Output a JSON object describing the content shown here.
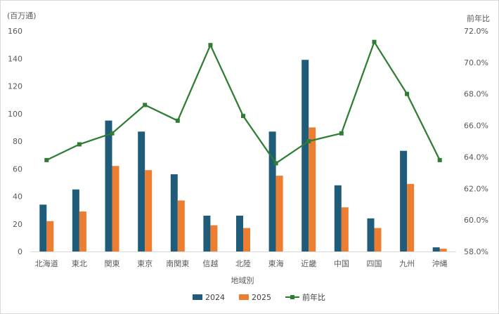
{
  "chart_data": {
    "type": "bar",
    "categories": [
      "北海道",
      "東北",
      "関東",
      "東京",
      "南関東",
      "信越",
      "北陸",
      "東海",
      "近畿",
      "中国",
      "四国",
      "九州",
      "沖縄"
    ],
    "series": [
      {
        "name": "2024",
        "type": "bar",
        "axis": "left",
        "color": "#1F5C7A",
        "values": [
          34,
          45,
          95,
          87,
          56,
          26,
          26,
          87,
          139,
          48,
          24,
          73,
          3
        ]
      },
      {
        "name": "2025",
        "type": "bar",
        "axis": "left",
        "color": "#ED7D31",
        "values": [
          22,
          29,
          62,
          59,
          37,
          19,
          17,
          55,
          90,
          32,
          17,
          49,
          2
        ]
      },
      {
        "name": "前年比",
        "type": "line",
        "axis": "right",
        "color": "#2E7D32",
        "values": [
          63.8,
          64.8,
          65.5,
          67.3,
          66.3,
          71.1,
          66.6,
          63.6,
          65.0,
          65.5,
          71.3,
          68.0,
          63.8
        ]
      }
    ],
    "xlabel": "地域別",
    "ylabel_left": "(百万通)",
    "ylabel_right": "前年比",
    "ylim_left": [
      0,
      160
    ],
    "ylim_right": [
      58,
      72
    ],
    "yticks_left": [
      "0",
      "20",
      "40",
      "60",
      "80",
      "100",
      "120",
      "140",
      "160"
    ],
    "yticks_right": [
      "58.0%",
      "60.0%",
      "62.0%",
      "64.0%",
      "66.0%",
      "68.0%",
      "70.0%",
      "72.0%"
    ],
    "grid": false,
    "legend_position": "bottom"
  }
}
